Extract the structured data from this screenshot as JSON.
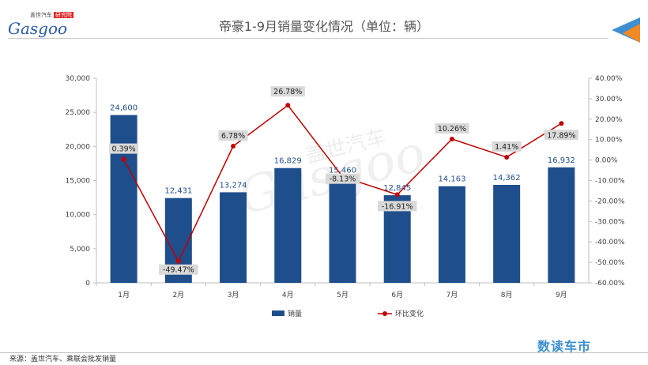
{
  "header": {
    "logo_text_top": "盖世汽车",
    "logo_tag": "研究院",
    "logo_word": "Gasgoo",
    "title": "帝豪1-9月销量变化情况（单位：辆）"
  },
  "watermark": {
    "word": "Gasgoo",
    "cn": "盖世汽车"
  },
  "footer": {
    "source": "来源：盖世汽车、乘联会批发销量",
    "brand": "数读车市"
  },
  "colors": {
    "bar": "#1f4e8c",
    "line": "#c00000",
    "label_box": "#d9d9d9",
    "bar_label": "#1f4e8c"
  },
  "chart_data": {
    "type": "bar",
    "categories": [
      "1月",
      "2月",
      "3月",
      "4月",
      "5月",
      "6月",
      "7月",
      "8月",
      "9月"
    ],
    "series": [
      {
        "name": "销量",
        "type": "bar",
        "axis": "left",
        "values": [
          24600,
          12431,
          13274,
          16829,
          15460,
          12845,
          14163,
          14362,
          16932
        ],
        "labels": [
          "24,600",
          "12,431",
          "13,274",
          "16,829",
          "15,460",
          "12,845",
          "14,163",
          "14,362",
          "16,932"
        ]
      },
      {
        "name": "环比变化",
        "type": "line",
        "axis": "right",
        "values": [
          0.39,
          -49.47,
          6.78,
          26.78,
          -8.13,
          -16.91,
          10.26,
          1.41,
          17.89
        ],
        "labels": [
          "0.39%",
          "-49.47%",
          "6.78%",
          "26.78%",
          "-8.13%",
          "-16.91%",
          "10.26%",
          "1.41%",
          "17.89%"
        ]
      }
    ],
    "y_left": {
      "min": 0,
      "max": 30000,
      "ticks": [
        "0",
        "5,000",
        "10,000",
        "15,000",
        "20,000",
        "25,000",
        "30,000"
      ]
    },
    "y_right": {
      "min": -60,
      "max": 40,
      "ticks": [
        "-60.00%",
        "-50.00%",
        "-40.00%",
        "-30.00%",
        "-20.00%",
        "-10.00%",
        "0.00%",
        "10.00%",
        "20.00%",
        "30.00%",
        "40.00%"
      ]
    },
    "legend": "bottom",
    "grid": false
  }
}
